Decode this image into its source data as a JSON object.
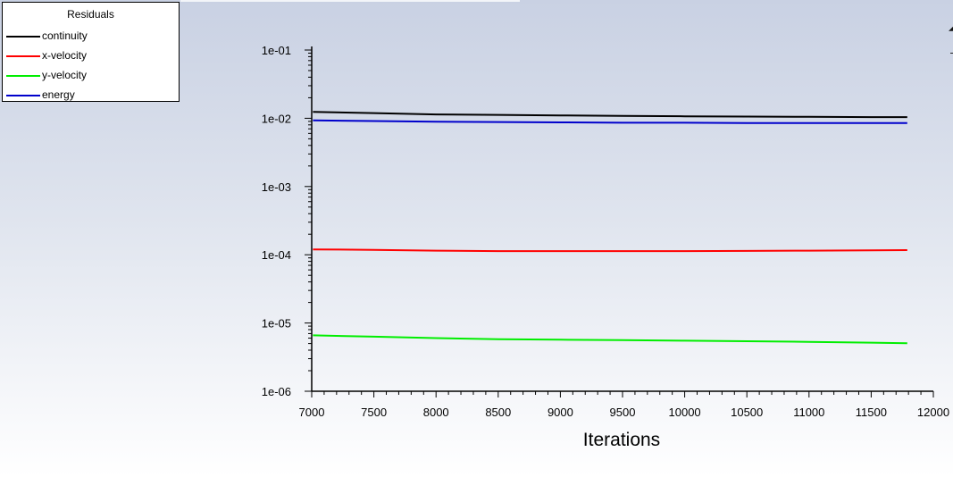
{
  "chart_data": {
    "type": "line",
    "title": "Residuals",
    "xlabel": "Iterations",
    "ylabel": "",
    "xscale": "linear",
    "yscale": "log",
    "xlim": [
      7000,
      12000
    ],
    "ylim": [
      1e-06,
      0.1
    ],
    "x_ticks": [
      7000,
      7500,
      8000,
      8500,
      9000,
      9500,
      10000,
      10500,
      11000,
      11500,
      12000
    ],
    "x_tick_labels": [
      "7000",
      "7500",
      "8000",
      "8500",
      "9000",
      "9500",
      "10000",
      "10500",
      "11000",
      "11500",
      "12000"
    ],
    "y_ticks": [
      1e-06,
      1e-05,
      0.0001,
      0.001,
      0.01,
      0.1
    ],
    "y_tick_labels": [
      "1e-06",
      "1e-05",
      "1e-04",
      "1e-03",
      "1e-02",
      "1e-01"
    ],
    "grid": false,
    "legend_position": "top-left",
    "series": [
      {
        "name": "continuity",
        "color": "#000000",
        "x": [
          7010,
          7500,
          8000,
          8500,
          9000,
          9500,
          10000,
          10500,
          11000,
          11500,
          11790
        ],
        "y": [
          0.0124,
          0.0119,
          0.0114,
          0.0112,
          0.011,
          0.0108,
          0.0107,
          0.0106,
          0.0105,
          0.0104,
          0.0104
        ]
      },
      {
        "name": "x-velocity",
        "color": "#ff0000",
        "x": [
          7010,
          7500,
          8000,
          8500,
          9000,
          9500,
          10000,
          10500,
          11000,
          11500,
          11790
        ],
        "y": [
          0.00012,
          0.000118,
          0.000115,
          0.000113,
          0.000113,
          0.000113,
          0.000113,
          0.000114,
          0.000115,
          0.000116,
          0.000117
        ]
      },
      {
        "name": "y-velocity",
        "color": "#00ee00",
        "x": [
          7010,
          7500,
          8000,
          8500,
          9000,
          9500,
          10000,
          10500,
          11000,
          11500,
          11790
        ],
        "y": [
          6.6e-06,
          6.3e-06,
          6e-06,
          5.8e-06,
          5.7e-06,
          5.6e-06,
          5.5e-06,
          5.4e-06,
          5.3e-06,
          5.15e-06,
          5.05e-06
        ]
      },
      {
        "name": "energy",
        "color": "#0000cc",
        "x": [
          7010,
          7500,
          8000,
          8500,
          9000,
          9500,
          10000,
          10500,
          11000,
          11500,
          11790
        ],
        "y": [
          0.0093,
          0.0091,
          0.0089,
          0.0088,
          0.0087,
          0.0086,
          0.0086,
          0.0085,
          0.0085,
          0.0085,
          0.0085
        ]
      }
    ]
  }
}
